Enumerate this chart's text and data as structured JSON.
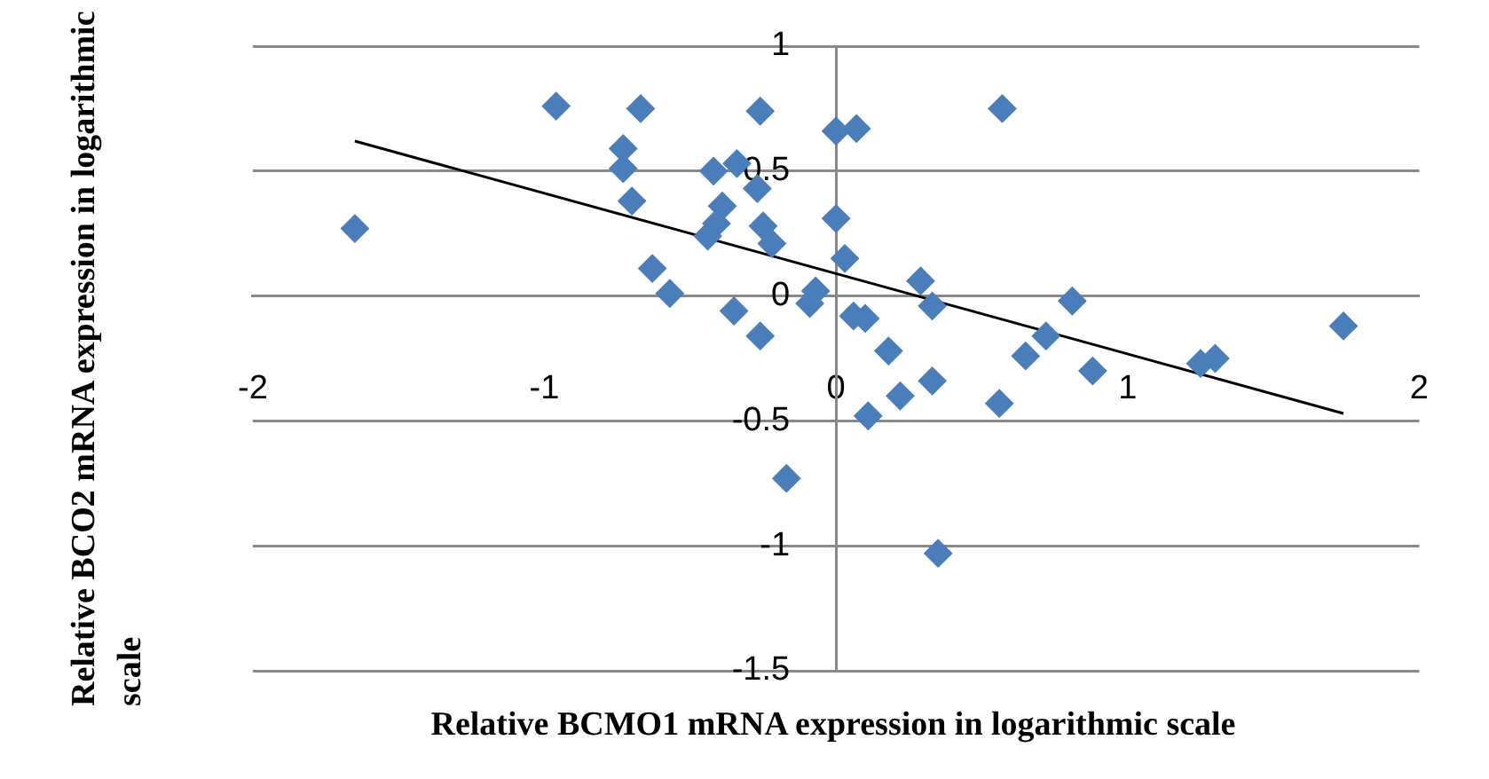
{
  "chart_data": {
    "type": "scatter",
    "xlabel": "Relative BCMO1 mRNA expression in logarithmic scale",
    "ylabel": "Relative BCO2  mRNA  expression in logarithmic scale",
    "xlim": [
      -2,
      2
    ],
    "xticks": [
      -2,
      -1,
      0,
      1,
      2
    ],
    "ylim": [
      -1.5,
      1
    ],
    "yticks": [
      -1.5,
      -1,
      -0.5,
      0,
      0.5,
      1
    ],
    "grid": "y",
    "legend": false,
    "marker": "diamond",
    "series": [
      {
        "color": "#4a7ebb",
        "x": [
          -1.65,
          -0.96,
          -0.67,
          -0.73,
          -0.73,
          -0.7,
          -0.63,
          -0.57,
          -0.26,
          -0.42,
          -0.34,
          -0.27,
          -0.39,
          -0.41,
          -0.44,
          -0.25,
          -0.22,
          -0.35,
          -0.26,
          -0.07,
          -0.09,
          0.0,
          0.0,
          0.03,
          0.07,
          0.57,
          0.06,
          0.1,
          0.29,
          0.33,
          0.18,
          0.22,
          0.33,
          0.11,
          0.56,
          0.65,
          0.72,
          0.81,
          0.88,
          1.25,
          1.3,
          1.74,
          -0.17,
          0.35
        ],
        "values": [
          0.27,
          0.76,
          0.75,
          0.59,
          0.51,
          0.38,
          0.11,
          0.01,
          0.74,
          0.5,
          0.53,
          0.43,
          0.36,
          0.29,
          0.24,
          0.28,
          0.21,
          -0.06,
          -0.16,
          0.02,
          -0.03,
          0.66,
          0.31,
          0.15,
          0.67,
          0.75,
          -0.08,
          -0.09,
          0.06,
          -0.04,
          -0.22,
          -0.4,
          -0.34,
          -0.48,
          -0.43,
          -0.24,
          -0.16,
          -0.02,
          -0.3,
          -0.27,
          -0.25,
          -0.12,
          -0.73,
          -1.03
        ]
      },
      {
        "type": "line",
        "color": "#000000",
        "marker": "none",
        "x": [
          -1.65,
          1.74
        ],
        "values": [
          0.62,
          -0.47
        ]
      }
    ]
  }
}
